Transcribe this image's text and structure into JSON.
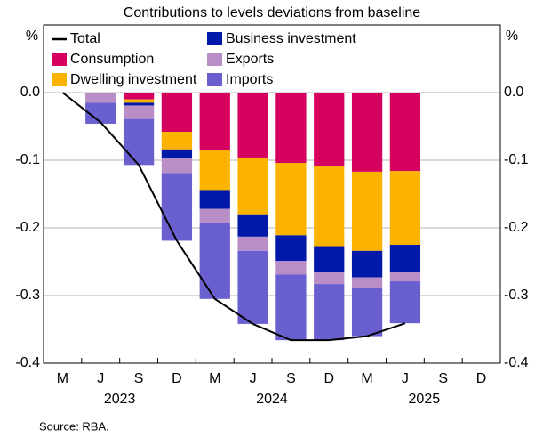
{
  "chart_data": {
    "type": "bar",
    "stacked": true,
    "title": "Contributions to levels deviations from baseline",
    "y_label": "%",
    "y2_label": "%",
    "source": "Source:   RBA.",
    "categories": [
      "M",
      "J",
      "S",
      "D",
      "M",
      "J",
      "S",
      "D",
      "M",
      "J",
      "S",
      "D"
    ],
    "years": [
      "2023",
      "2024",
      "2025"
    ],
    "ylim": [
      -0.4,
      0.1
    ],
    "yticks": [
      -0.4,
      -0.3,
      -0.2,
      -0.1,
      {
        "value": 0,
        "label": "0.0"
      }
    ],
    "grid": true,
    "series": [
      {
        "name": "Total",
        "type": "line",
        "color": "#000000",
        "values": [
          0,
          -0.044,
          -0.107,
          -0.219,
          -0.305,
          -0.342,
          -0.366,
          -0.366,
          -0.36,
          -0.341,
          null,
          null
        ]
      },
      {
        "name": "Consumption",
        "color": "#d6005e",
        "values": [
          null,
          0,
          -0.01,
          -0.058,
          -0.085,
          -0.096,
          -0.104,
          -0.109,
          -0.117,
          -0.116,
          null,
          null
        ]
      },
      {
        "name": "Dwelling investment",
        "color": "#fbb300",
        "values": [
          null,
          0,
          -0.005,
          -0.026,
          -0.059,
          -0.084,
          -0.107,
          -0.118,
          -0.117,
          -0.109,
          null,
          null
        ]
      },
      {
        "name": "Business investment",
        "color": "#0019a8",
        "values": [
          null,
          0,
          -0.004,
          -0.013,
          -0.028,
          -0.033,
          -0.038,
          -0.039,
          -0.039,
          -0.041,
          null,
          null
        ]
      },
      {
        "name": "Exports",
        "color": "#b98ec7",
        "values": [
          null,
          -0.015,
          -0.02,
          -0.022,
          -0.021,
          -0.021,
          -0.02,
          -0.017,
          -0.016,
          -0.013,
          null,
          null
        ]
      },
      {
        "name": "Imports",
        "color": "#6a5fcf",
        "values": [
          null,
          -0.031,
          -0.068,
          -0.1,
          -0.112,
          -0.108,
          -0.097,
          -0.083,
          -0.071,
          -0.062,
          null,
          null
        ]
      }
    ]
  }
}
